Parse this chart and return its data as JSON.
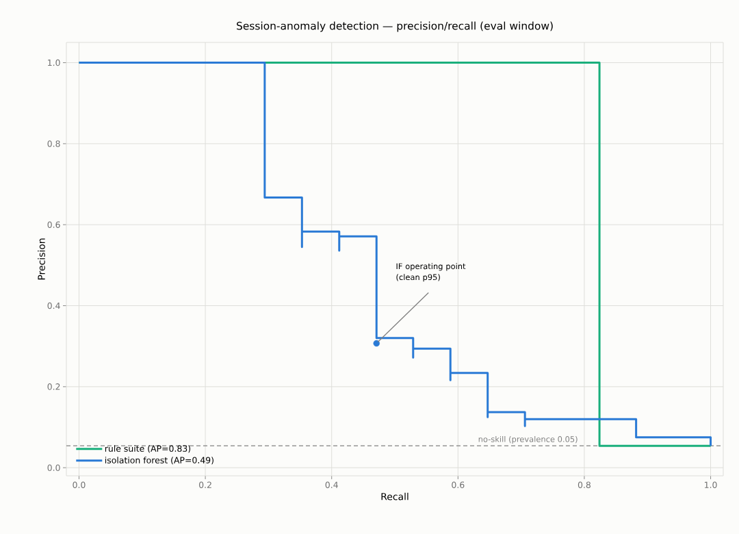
{
  "chart_data": {
    "type": "step",
    "title": "Session-anomaly detection — precision/recall (eval window)",
    "xlabel": "Recall",
    "ylabel": "Precision",
    "xlim": [
      -0.02,
      1.02
    ],
    "ylim": [
      -0.02,
      1.05
    ],
    "xticks": [
      {
        "value": 0,
        "label": "0.0"
      },
      0.2,
      0.4,
      0.6,
      0.8,
      {
        "value": 1,
        "label": "1.0"
      }
    ],
    "yticks": [
      {
        "value": 0,
        "label": "0.0"
      },
      0.2,
      0.4,
      0.6,
      0.8,
      {
        "value": 1,
        "label": "1.0"
      }
    ],
    "grid": true,
    "legend": "bottom left",
    "line_style": "solid",
    "series": [
      {
        "name": "rule suite  (AP=0.83)",
        "color": "#1aaf7c",
        "x": [
          0,
          0.824,
          1.0
        ],
        "values": [
          1,
          0.054,
          0.054
        ]
      },
      {
        "name": "isolation forest  (AP=0.49)",
        "color": "#2a7ad5",
        "x": [
          0,
          0.294,
          0.353,
          0.353,
          0.412,
          0.412,
          0.471,
          0.529,
          0.529,
          0.588,
          0.588,
          0.647,
          0.647,
          0.706,
          0.706,
          0.882,
          1.0
        ],
        "values": [
          1,
          0.667,
          0.545,
          0.583,
          0.536,
          0.571,
          0.32,
          0.272,
          0.294,
          0.216,
          0.234,
          0.125,
          0.137,
          0.103,
          0.12,
          0.075,
          0.054
        ]
      },
      {
        "type": "scatter",
        "color": "#2a7ad5",
        "x": [
          0.471
        ],
        "values": [
          0.307
        ]
      }
    ],
    "ref_lines": [
      {
        "axis": "y",
        "value": 0.054,
        "label": "no-skill (prevalence 0.05)",
        "color": "#808080",
        "line_style": "dashed"
      }
    ],
    "annotations": [
      "IF operating point (clean p95)"
    ]
  }
}
